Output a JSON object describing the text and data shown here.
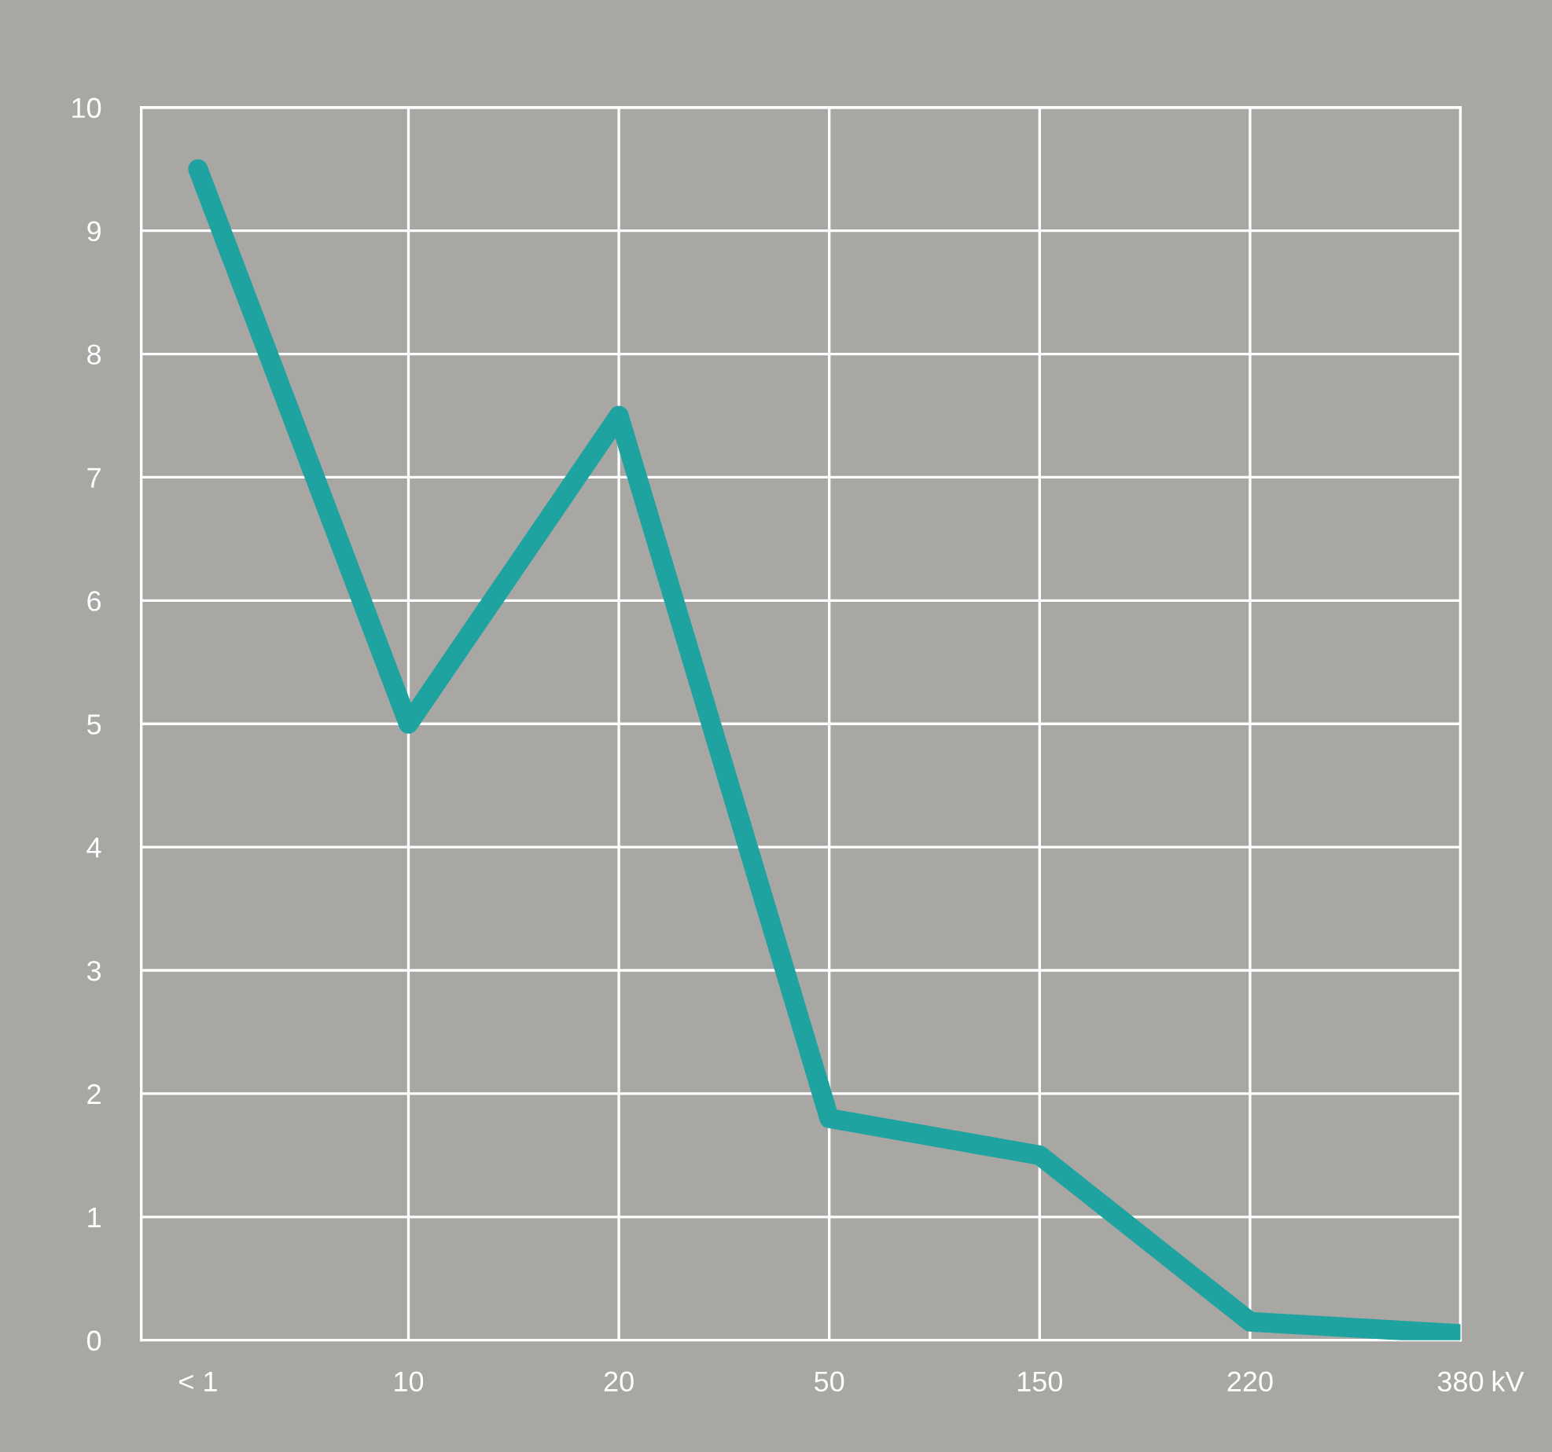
{
  "chart_data": {
    "type": "line",
    "categories": [
      "< 1",
      "10",
      "20",
      "50",
      "150",
      "220",
      "380"
    ],
    "xlabel": "kV",
    "series": [
      {
        "color": "#1ea3a0",
        "values": [
          9.5,
          5.0,
          7.5,
          1.8,
          1.5,
          0.15,
          0.05
        ]
      }
    ],
    "ylim": [
      0,
      10
    ],
    "yticks": [
      0,
      1,
      2,
      3,
      4,
      5,
      6,
      7,
      8,
      9,
      10
    ],
    "grid": true,
    "marker": "none",
    "line_style": "solid"
  }
}
